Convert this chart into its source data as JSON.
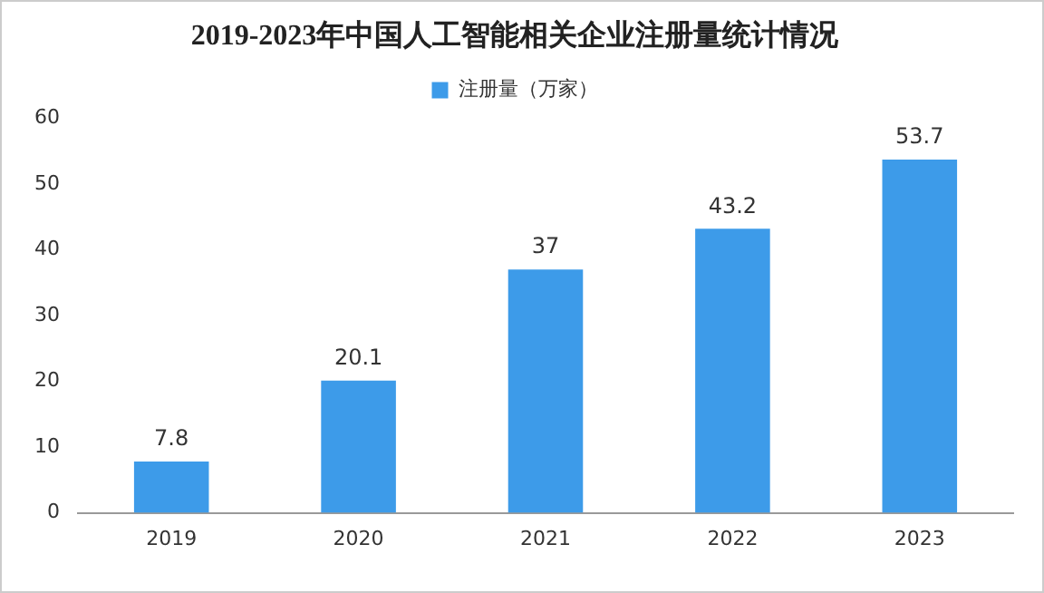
{
  "chart_data": {
    "type": "bar",
    "title": "2019-2023年中国人工智能相关企业注册量统计情况",
    "categories": [
      "2019",
      "2020",
      "2021",
      "2022",
      "2023"
    ],
    "series": [
      {
        "name": "注册量（万家）",
        "color": "#3d9be9",
        "values": [
          7.8,
          20.1,
          37,
          43.2,
          53.7
        ]
      }
    ],
    "ylim": [
      0,
      60
    ],
    "yticks": [
      0,
      10,
      20,
      30,
      40,
      50,
      60
    ],
    "grid": false,
    "legend": "top",
    "data_labels": true
  }
}
